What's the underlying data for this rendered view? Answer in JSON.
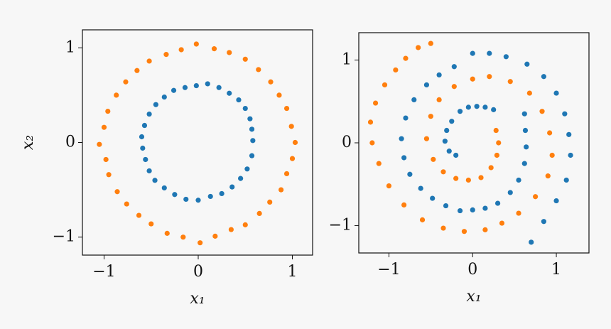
{
  "chart_data": [
    {
      "type": "scatter",
      "xlabel": "x₁",
      "ylabel": "x₂",
      "xlim": [
        -1.23,
        1.215
      ],
      "ylim": [
        -1.19,
        1.19
      ],
      "xticks": [
        {
          "value": -1,
          "label": "−1"
        },
        0,
        1
      ],
      "yticks": [
        {
          "value": -1,
          "label": "−1"
        },
        0,
        1
      ],
      "series": [
        {
          "color": "#1f77b4",
          "x": [
            0.58,
            0.57,
            0.55,
            0.5,
            0.43,
            0.33,
            0.22,
            0.1,
            -0.02,
            -0.14,
            -0.26,
            -0.36,
            -0.45,
            -0.52,
            -0.57,
            -0.6,
            -0.59,
            -0.56,
            -0.52,
            -0.46,
            -0.36,
            -0.25,
            -0.13,
            0.0,
            0.13,
            0.25,
            0.36,
            0.45,
            0.52,
            0.57
          ],
          "y": [
            0.02,
            0.14,
            0.25,
            0.36,
            0.45,
            0.52,
            0.58,
            0.62,
            0.6,
            0.58,
            0.55,
            0.48,
            0.4,
            0.3,
            0.18,
            0.06,
            -0.06,
            -0.18,
            -0.3,
            -0.4,
            -0.48,
            -0.55,
            -0.6,
            -0.61,
            -0.57,
            -0.54,
            -0.47,
            -0.38,
            -0.28,
            -0.14
          ]
        },
        {
          "color": "#ff7f0e",
          "x": [
            1.03,
            0.99,
            0.94,
            0.86,
            0.77,
            0.64,
            0.5,
            0.33,
            0.17,
            -0.02,
            -0.18,
            -0.34,
            -0.52,
            -0.65,
            -0.77,
            -0.87,
            -0.96,
            -1.0,
            -1.05,
            -0.98,
            -0.95,
            -0.86,
            -0.76,
            -0.63,
            -0.5,
            -0.33,
            -0.16,
            0.02,
            0.18,
            0.35,
            0.5,
            0.65,
            0.76,
            0.88,
            0.94,
            1.0
          ],
          "y": [
            0.0,
            0.17,
            0.36,
            0.5,
            0.64,
            0.77,
            0.88,
            0.95,
            0.99,
            1.04,
            0.98,
            0.93,
            0.86,
            0.76,
            0.64,
            0.5,
            0.33,
            0.16,
            -0.02,
            -0.18,
            -0.34,
            -0.52,
            -0.65,
            -0.77,
            -0.86,
            -0.96,
            -1.0,
            -1.06,
            -0.99,
            -0.92,
            -0.87,
            -0.75,
            -0.63,
            -0.5,
            -0.33,
            -0.17
          ]
        }
      ]
    },
    {
      "type": "scatter",
      "xlabel": "x₁",
      "xlim": [
        -1.36,
        1.39
      ],
      "ylim": [
        -1.33,
        1.33
      ],
      "xticks": [
        {
          "value": -1,
          "label": "−1"
        },
        0,
        1
      ],
      "yticks": [
        {
          "value": -1,
          "label": "−1"
        },
        0,
        1
      ],
      "series": [
        {
          "color": "#1f77b4",
          "x": [
            -0.05,
            0.05,
            0.15,
            0.25,
            -0.15,
            -0.25,
            -0.31,
            -0.33,
            -0.28,
            -0.2,
            0.62,
            0.63,
            0.64,
            0.62,
            0.55,
            0.45,
            0.3,
            0.15,
            0.0,
            -0.15,
            -0.32,
            -0.48,
            -0.62,
            -0.75,
            -0.82,
            -0.85,
            -0.8,
            -0.7,
            -0.55,
            -0.4,
            -0.22,
            0.0,
            0.2,
            0.4,
            0.65,
            0.85,
            1.0,
            1.1,
            1.15,
            1.17,
            1.12,
            1.0,
            0.85,
            0.7
          ],
          "y": [
            0.43,
            0.44,
            0.43,
            0.4,
            0.38,
            0.26,
            0.15,
            0.02,
            -0.1,
            -0.15,
            0.35,
            0.15,
            -0.05,
            -0.25,
            -0.45,
            -0.6,
            -0.73,
            -0.79,
            -0.81,
            -0.82,
            -0.76,
            -0.67,
            -0.55,
            -0.38,
            -0.18,
            0.05,
            0.3,
            0.52,
            0.7,
            0.82,
            0.92,
            1.08,
            1.08,
            1.04,
            0.95,
            0.8,
            0.6,
            0.35,
            0.1,
            -0.15,
            -0.45,
            -0.7,
            -0.95,
            -1.2
          ]
        },
        {
          "color": "#ff7f0e",
          "x": [
            0.28,
            0.31,
            0.29,
            0.22,
            0.1,
            -0.05,
            -0.2,
            -0.35,
            -0.47,
            -0.55,
            -0.5,
            -0.4,
            -0.22,
            0.0,
            0.2,
            0.45,
            0.68,
            0.83,
            0.92,
            0.95,
            0.9,
            0.75,
            0.55,
            0.35,
            0.15,
            -0.1,
            -0.35,
            -0.6,
            -0.82,
            -1.0,
            -1.12,
            -1.2,
            -1.22,
            -1.16,
            -1.05,
            -0.92,
            -0.8,
            -0.65,
            -0.5
          ],
          "y": [
            0.15,
            0.0,
            -0.15,
            -0.3,
            -0.42,
            -0.45,
            -0.43,
            -0.35,
            -0.2,
            0.05,
            0.32,
            0.52,
            0.68,
            0.77,
            0.8,
            0.74,
            0.6,
            0.38,
            0.12,
            -0.15,
            -0.4,
            -0.65,
            -0.85,
            -0.97,
            -1.05,
            -1.07,
            -1.03,
            -0.93,
            -0.75,
            -0.52,
            -0.25,
            0.0,
            0.25,
            0.48,
            0.7,
            0.88,
            1.02,
            1.15,
            1.2
          ]
        }
      ]
    }
  ]
}
